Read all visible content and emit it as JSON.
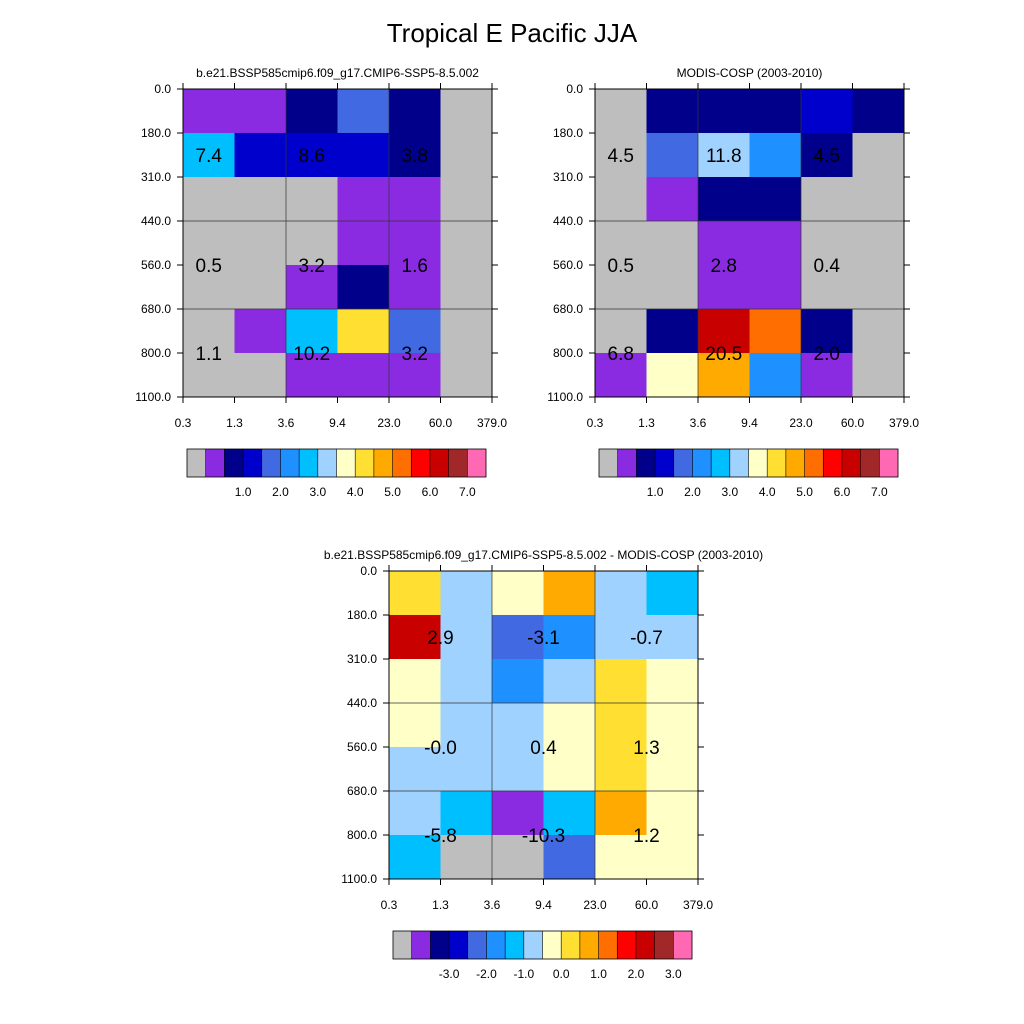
{
  "title": "Tropical E Pacific JJA",
  "colors": {
    "seq": [
      "#bebebe",
      "#8a2be2",
      "#00008b",
      "#0000cd",
      "#4169e1",
      "#1e90ff",
      "#00bfff",
      "#a0d2ff",
      "#ffffc8",
      "#ffe032",
      "#ffaa00",
      "#ff6e00",
      "#ff0000",
      "#c80000",
      "#a02828",
      "#ff69b4"
    ],
    "diff": [
      "#bebebe",
      "#8a2be2",
      "#00008b",
      "#0000cd",
      "#4169e1",
      "#1e90ff",
      "#00bfff",
      "#a0d2ff",
      "#ffffc8",
      "#ffe032",
      "#ffaa00",
      "#ff6e00",
      "#ff0000",
      "#c80000",
      "#a02828",
      "#ff69b4"
    ]
  },
  "chart_data": [
    {
      "type": "heatmap",
      "title": "b.e21.BSSP585cmip6.f09_g17.CMIP6-SSP5-8.5.002",
      "x_tick_labels": [
        "0.3",
        "1.3",
        "3.6",
        "9.4",
        "23.0",
        "60.0",
        "379.0"
      ],
      "y_tick_labels": [
        "0.0",
        "180.0",
        "310.0",
        "440.0",
        "560.0",
        "680.0",
        "800.0",
        "1100.0"
      ],
      "cell_color_index": [
        [
          1,
          1,
          2,
          4,
          2,
          0
        ],
        [
          6,
          3,
          3,
          3,
          2,
          0
        ],
        [
          0,
          0,
          0,
          1,
          1,
          0
        ],
        [
          0,
          0,
          0,
          1,
          1,
          0
        ],
        [
          0,
          0,
          1,
          2,
          1,
          0
        ],
        [
          0,
          1,
          6,
          9,
          4,
          0
        ],
        [
          0,
          0,
          1,
          1,
          1,
          0
        ]
      ],
      "cell_labels": [
        {
          "text": "7.4",
          "col": 0.5,
          "row": 1.5
        },
        {
          "text": "8.6",
          "col": 2.5,
          "row": 1.5
        },
        {
          "text": "3.8",
          "col": 4.5,
          "row": 1.5
        },
        {
          "text": "0.5",
          "col": 0.5,
          "row": 4
        },
        {
          "text": "3.2",
          "col": 2.5,
          "row": 4
        },
        {
          "text": "1.6",
          "col": 4.5,
          "row": 4
        },
        {
          "text": "1.1",
          "col": 0.5,
          "row": 6
        },
        {
          "text": "10.2",
          "col": 2.5,
          "row": 6
        },
        {
          "text": "3.2",
          "col": 4.5,
          "row": 6
        }
      ],
      "colorbar": {
        "palette": "seq",
        "labels": [
          "1.0",
          "2.0",
          "3.0",
          "4.0",
          "5.0",
          "6.0",
          "7.0"
        ]
      }
    },
    {
      "type": "heatmap",
      "title": "MODIS-COSP (2003-2010)",
      "x_tick_labels": [
        "0.3",
        "1.3",
        "3.6",
        "9.4",
        "23.0",
        "60.0",
        "379.0"
      ],
      "y_tick_labels": [
        "0.0",
        "180.0",
        "310.0",
        "440.0",
        "560.0",
        "680.0",
        "800.0",
        "1100.0"
      ],
      "cell_color_index": [
        [
          0,
          2,
          2,
          2,
          3,
          2
        ],
        [
          0,
          4,
          7,
          5,
          2,
          0
        ],
        [
          0,
          1,
          2,
          2,
          0,
          0
        ],
        [
          0,
          0,
          1,
          1,
          0,
          0
        ],
        [
          0,
          0,
          1,
          1,
          0,
          0
        ],
        [
          0,
          2,
          13,
          11,
          2,
          0
        ],
        [
          1,
          8,
          10,
          5,
          1,
          0
        ]
      ],
      "cell_labels": [
        {
          "text": "4.5",
          "col": 0.5,
          "row": 1.5
        },
        {
          "text": "11.8",
          "col": 2.5,
          "row": 1.5
        },
        {
          "text": "4.5",
          "col": 4.5,
          "row": 1.5
        },
        {
          "text": "0.5",
          "col": 0.5,
          "row": 4
        },
        {
          "text": "2.8",
          "col": 2.5,
          "row": 4
        },
        {
          "text": "0.4",
          "col": 4.5,
          "row": 4
        },
        {
          "text": "6.8",
          "col": 0.5,
          "row": 6
        },
        {
          "text": "20.5",
          "col": 2.5,
          "row": 6
        },
        {
          "text": "2.0",
          "col": 4.5,
          "row": 6
        }
      ],
      "colorbar": {
        "palette": "seq",
        "labels": [
          "1.0",
          "2.0",
          "3.0",
          "4.0",
          "5.0",
          "6.0",
          "7.0"
        ]
      }
    },
    {
      "type": "heatmap",
      "title": "b.e21.BSSP585cmip6.f09_g17.CMIP6-SSP5-8.5.002 - MODIS-COSP (2003-2010)",
      "x_tick_labels": [
        "0.3",
        "1.3",
        "3.6",
        "9.4",
        "23.0",
        "60.0",
        "379.0"
      ],
      "y_tick_labels": [
        "0.0",
        "180.0",
        "310.0",
        "440.0",
        "560.0",
        "680.0",
        "800.0",
        "1100.0"
      ],
      "cell_color_index": [
        [
          9,
          7,
          8,
          10,
          7,
          6
        ],
        [
          13,
          7,
          4,
          5,
          7,
          7
        ],
        [
          8,
          7,
          5,
          7,
          9,
          8
        ],
        [
          8,
          7,
          7,
          8,
          9,
          8
        ],
        [
          7,
          7,
          7,
          8,
          9,
          8
        ],
        [
          7,
          6,
          1,
          6,
          10,
          8
        ],
        [
          6,
          0,
          0,
          4,
          8,
          8
        ]
      ],
      "cell_labels": [
        {
          "text": "2.9",
          "col": 1,
          "row": 1.5
        },
        {
          "text": "-3.1",
          "col": 3,
          "row": 1.5
        },
        {
          "text": "-0.7",
          "col": 5,
          "row": 1.5
        },
        {
          "text": "-0.0",
          "col": 1,
          "row": 4
        },
        {
          "text": "0.4",
          "col": 3,
          "row": 4
        },
        {
          "text": "1.3",
          "col": 5,
          "row": 4
        },
        {
          "text": "-5.8",
          "col": 1,
          "row": 6
        },
        {
          "text": "-10.3",
          "col": 3,
          "row": 6
        },
        {
          "text": "1.2",
          "col": 5,
          "row": 6
        }
      ],
      "colorbar": {
        "palette": "diff",
        "labels": [
          "-3.0",
          "-2.0",
          "-1.0",
          "0.0",
          "1.0",
          "2.0",
          "3.0"
        ]
      }
    }
  ]
}
